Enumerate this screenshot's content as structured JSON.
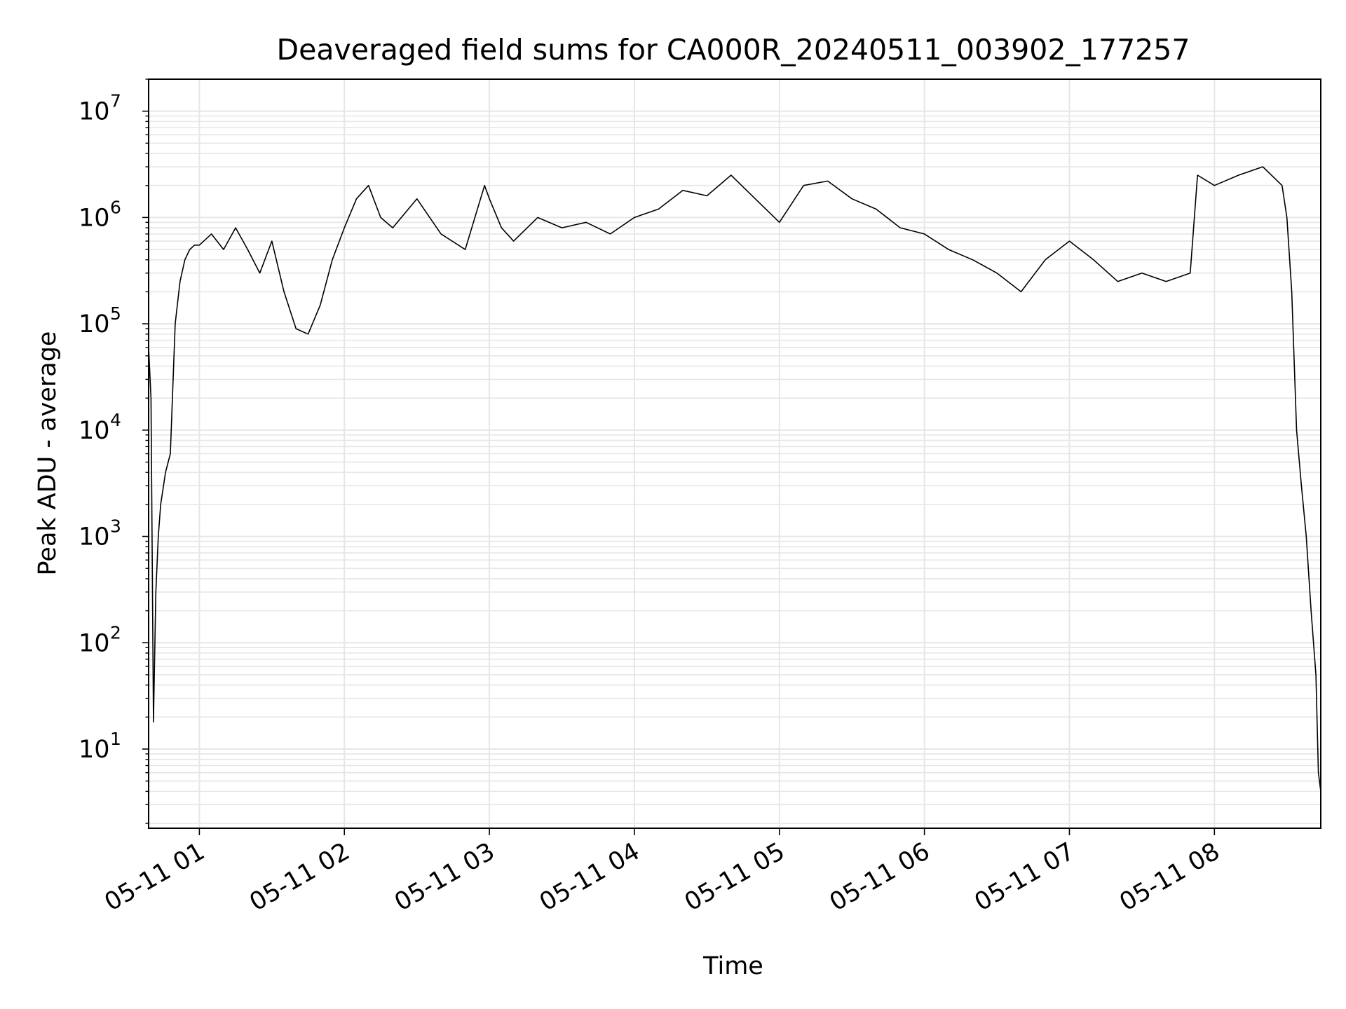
{
  "chart_data": {
    "type": "line",
    "title": "Deaveraged field sums for CA000R_20240511_003902_177257",
    "xlabel": "Time",
    "ylabel": "Peak ADU - average",
    "yscale": "log",
    "ylim": [
      1.8,
      20000000
    ],
    "xlim": [
      "2024-05-11 00:39",
      "2024-05-11 08:44"
    ],
    "grid": true,
    "line_color": "#000000",
    "grid_color": "#e6e6e6",
    "x_ticks": [
      {
        "value": "2024-05-11 01:00",
        "label": "05-11 01"
      },
      {
        "value": "2024-05-11 02:00",
        "label": "05-11 02"
      },
      {
        "value": "2024-05-11 03:00",
        "label": "05-11 03"
      },
      {
        "value": "2024-05-11 04:00",
        "label": "05-11 04"
      },
      {
        "value": "2024-05-11 05:00",
        "label": "05-11 05"
      },
      {
        "value": "2024-05-11 06:00",
        "label": "05-11 06"
      },
      {
        "value": "2024-05-11 07:00",
        "label": "05-11 07"
      },
      {
        "value": "2024-05-11 08:00",
        "label": "05-11 08"
      }
    ],
    "y_ticks": [
      {
        "value": 10,
        "base": "10",
        "exp": "1"
      },
      {
        "value": 100,
        "base": "10",
        "exp": "2"
      },
      {
        "value": 1000,
        "base": "10",
        "exp": "3"
      },
      {
        "value": 10000,
        "base": "10",
        "exp": "4"
      },
      {
        "value": 100000,
        "base": "10",
        "exp": "5"
      },
      {
        "value": 1000000,
        "base": "10",
        "exp": "6"
      },
      {
        "value": 10000000,
        "base": "10",
        "exp": "7"
      }
    ],
    "series": [
      {
        "x": [
          "2024-05-11 00:39",
          "2024-05-11 00:40",
          "2024-05-11 00:41",
          "2024-05-11 00:42",
          "2024-05-11 00:43",
          "2024-05-11 00:44",
          "2024-05-11 00:46",
          "2024-05-11 00:48",
          "2024-05-11 00:50",
          "2024-05-11 00:52",
          "2024-05-11 00:54",
          "2024-05-11 00:56",
          "2024-05-11 00:58",
          "2024-05-11 01:00",
          "2024-05-11 01:05",
          "2024-05-11 01:10",
          "2024-05-11 01:15",
          "2024-05-11 01:20",
          "2024-05-11 01:25",
          "2024-05-11 01:30",
          "2024-05-11 01:35",
          "2024-05-11 01:40",
          "2024-05-11 01:45",
          "2024-05-11 01:50",
          "2024-05-11 01:55",
          "2024-05-11 02:00",
          "2024-05-11 02:05",
          "2024-05-11 02:10",
          "2024-05-11 02:15",
          "2024-05-11 02:20",
          "2024-05-11 02:30",
          "2024-05-11 02:40",
          "2024-05-11 02:50",
          "2024-05-11 02:58",
          "2024-05-11 03:00",
          "2024-05-11 03:05",
          "2024-05-11 03:10",
          "2024-05-11 03:20",
          "2024-05-11 03:30",
          "2024-05-11 03:40",
          "2024-05-11 03:50",
          "2024-05-11 04:00",
          "2024-05-11 04:10",
          "2024-05-11 04:20",
          "2024-05-11 04:30",
          "2024-05-11 04:40",
          "2024-05-11 04:50",
          "2024-05-11 05:00",
          "2024-05-11 05:10",
          "2024-05-11 05:20",
          "2024-05-11 05:30",
          "2024-05-11 05:40",
          "2024-05-11 05:50",
          "2024-05-11 06:00",
          "2024-05-11 06:10",
          "2024-05-11 06:20",
          "2024-05-11 06:30",
          "2024-05-11 06:40",
          "2024-05-11 06:50",
          "2024-05-11 07:00",
          "2024-05-11 07:10",
          "2024-05-11 07:20",
          "2024-05-11 07:30",
          "2024-05-11 07:40",
          "2024-05-11 07:50",
          "2024-05-11 07:53",
          "2024-05-11 08:00",
          "2024-05-11 08:10",
          "2024-05-11 08:20",
          "2024-05-11 08:28",
          "2024-05-11 08:30",
          "2024-05-11 08:32",
          "2024-05-11 08:34",
          "2024-05-11 08:36",
          "2024-05-11 08:38",
          "2024-05-11 08:40",
          "2024-05-11 08:42",
          "2024-05-11 08:43",
          "2024-05-11 08:44"
        ],
        "y": [
          60000,
          20000,
          18,
          300,
          1000,
          2000,
          4000,
          6000,
          100000,
          250000,
          400000,
          500000,
          550000,
          550000,
          700000,
          500000,
          800000,
          500000,
          300000,
          600000,
          200000,
          90000,
          80000,
          150000,
          400000,
          800000,
          1500000,
          2000000,
          1000000,
          800000,
          1500000,
          700000,
          500000,
          2000000,
          1500000,
          800000,
          600000,
          1000000,
          800000,
          900000,
          700000,
          1000000,
          1200000,
          1800000,
          1600000,
          2500000,
          1500000,
          900000,
          2000000,
          2200000,
          1500000,
          1200000,
          800000,
          700000,
          500000,
          400000,
          300000,
          200000,
          400000,
          600000,
          400000,
          250000,
          300000,
          250000,
          300000,
          2500000,
          2000000,
          2500000,
          3000000,
          2000000,
          1000000,
          200000,
          10000,
          3000,
          1000,
          200,
          50,
          6,
          4
        ]
      }
    ]
  }
}
